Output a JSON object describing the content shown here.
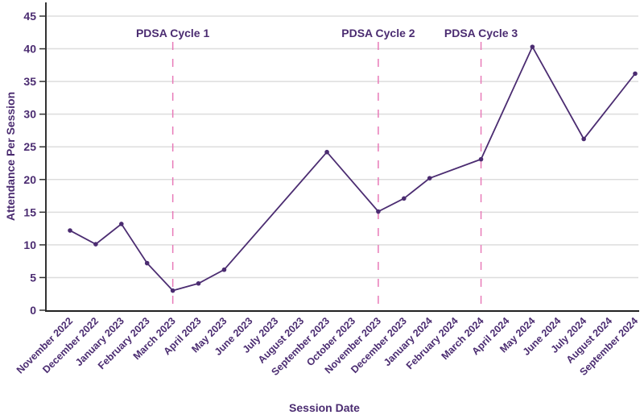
{
  "chart_data": {
    "type": "line",
    "title": "",
    "xlabel": "Session Date",
    "ylabel": "Attendance Per Session",
    "ylim": [
      0,
      45
    ],
    "yticks": [
      0,
      5,
      10,
      15,
      20,
      25,
      30,
      35,
      40,
      45
    ],
    "grid": true,
    "categories": [
      "November 2022",
      "December 2022",
      "January 2023",
      "February 2023",
      "March 2023",
      "April 2023",
      "May 2023",
      "June 2023",
      "July 2023",
      "August 2023",
      "September 2023",
      "October 2023",
      "November 2023",
      "December 2023",
      "January 2024",
      "February 2024",
      "March 2024",
      "April 2024",
      "May 2024",
      "June 2024",
      "July 2024",
      "August 2024",
      "September 2024"
    ],
    "series": [
      {
        "name": "Attendance",
        "values": [
          12.2,
          10.1,
          13.2,
          7.2,
          3.0,
          4.1,
          6.2,
          null,
          null,
          null,
          24.2,
          null,
          15.1,
          17.1,
          20.2,
          null,
          23.1,
          null,
          40.3,
          null,
          26.2,
          null,
          36.2
        ]
      }
    ],
    "annotations": [
      {
        "label": "PDSA Cycle 1",
        "category": "March 2023"
      },
      {
        "label": "PDSA Cycle 2",
        "category": "November 2023"
      },
      {
        "label": "PDSA Cycle 3",
        "category": "March 2024"
      }
    ],
    "colors": {
      "line": "#4b2c71",
      "annotation": "#e87ab8",
      "grid": "#dddddd",
      "axis": "#333333"
    }
  }
}
